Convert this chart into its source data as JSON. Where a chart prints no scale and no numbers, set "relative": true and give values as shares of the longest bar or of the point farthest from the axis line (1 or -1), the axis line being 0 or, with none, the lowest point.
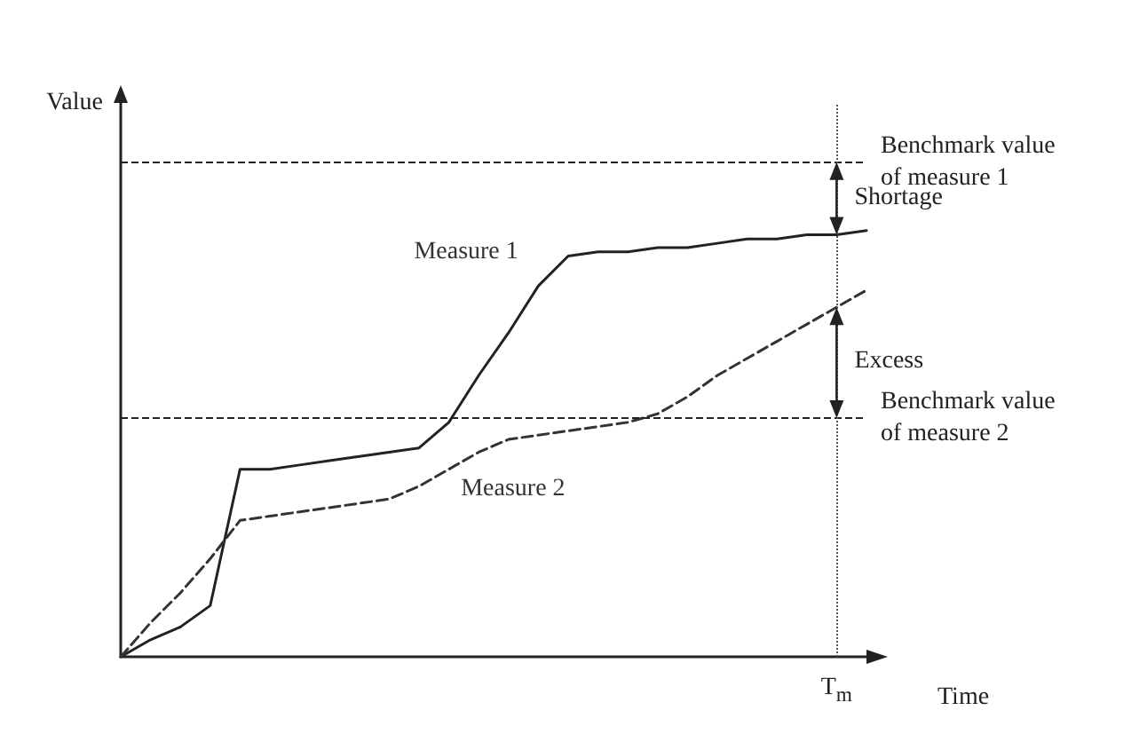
{
  "chart_data": {
    "type": "line",
    "relative": true,
    "xlabel": "Time",
    "ylabel": "Value",
    "grid": false,
    "legend": false,
    "marker": "none",
    "categories": [
      null,
      null,
      null,
      null,
      null,
      null,
      null,
      null,
      null,
      null,
      null,
      null,
      null,
      null,
      null,
      null,
      null,
      null,
      null,
      null,
      null,
      null,
      null,
      null,
      null,
      null
    ],
    "series": [
      {
        "name": "Measure 1",
        "color": "#222222",
        "line_style": "solid",
        "values": [
          0,
          0.04,
          0.07,
          0.12,
          0.44,
          0.44,
          0.45,
          0.46,
          0.47,
          0.48,
          0.49,
          0.55,
          0.66,
          0.76,
          0.87,
          0.94,
          0.95,
          0.95,
          0.96,
          0.96,
          0.97,
          0.98,
          0.98,
          0.99,
          0.99,
          1
        ]
      },
      {
        "name": "Measure 2",
        "color": "#333333",
        "line_style": "dashed",
        "values": [
          0,
          0.08,
          0.15,
          0.23,
          0.32,
          0.33,
          0.34,
          0.35,
          0.36,
          0.37,
          0.4,
          0.44,
          0.48,
          0.51,
          0.52,
          0.53,
          0.54,
          0.55,
          0.57,
          0.61,
          0.66,
          0.7,
          0.74,
          0.78,
          0.82,
          0.86
        ]
      }
    ],
    "ref_lines": [
      {
        "axis": "y",
        "value": 1.16,
        "label": "Benchmark value of measure 1",
        "line_style": "dashed",
        "color": "#222222"
      },
      {
        "axis": "y",
        "value": 0.56,
        "label": "Benchmark value of measure 2",
        "line_style": "dashed",
        "color": "#222222"
      }
    ],
    "annotations": [
      "Shortage",
      "Excess",
      "T$_{m}$"
    ]
  }
}
